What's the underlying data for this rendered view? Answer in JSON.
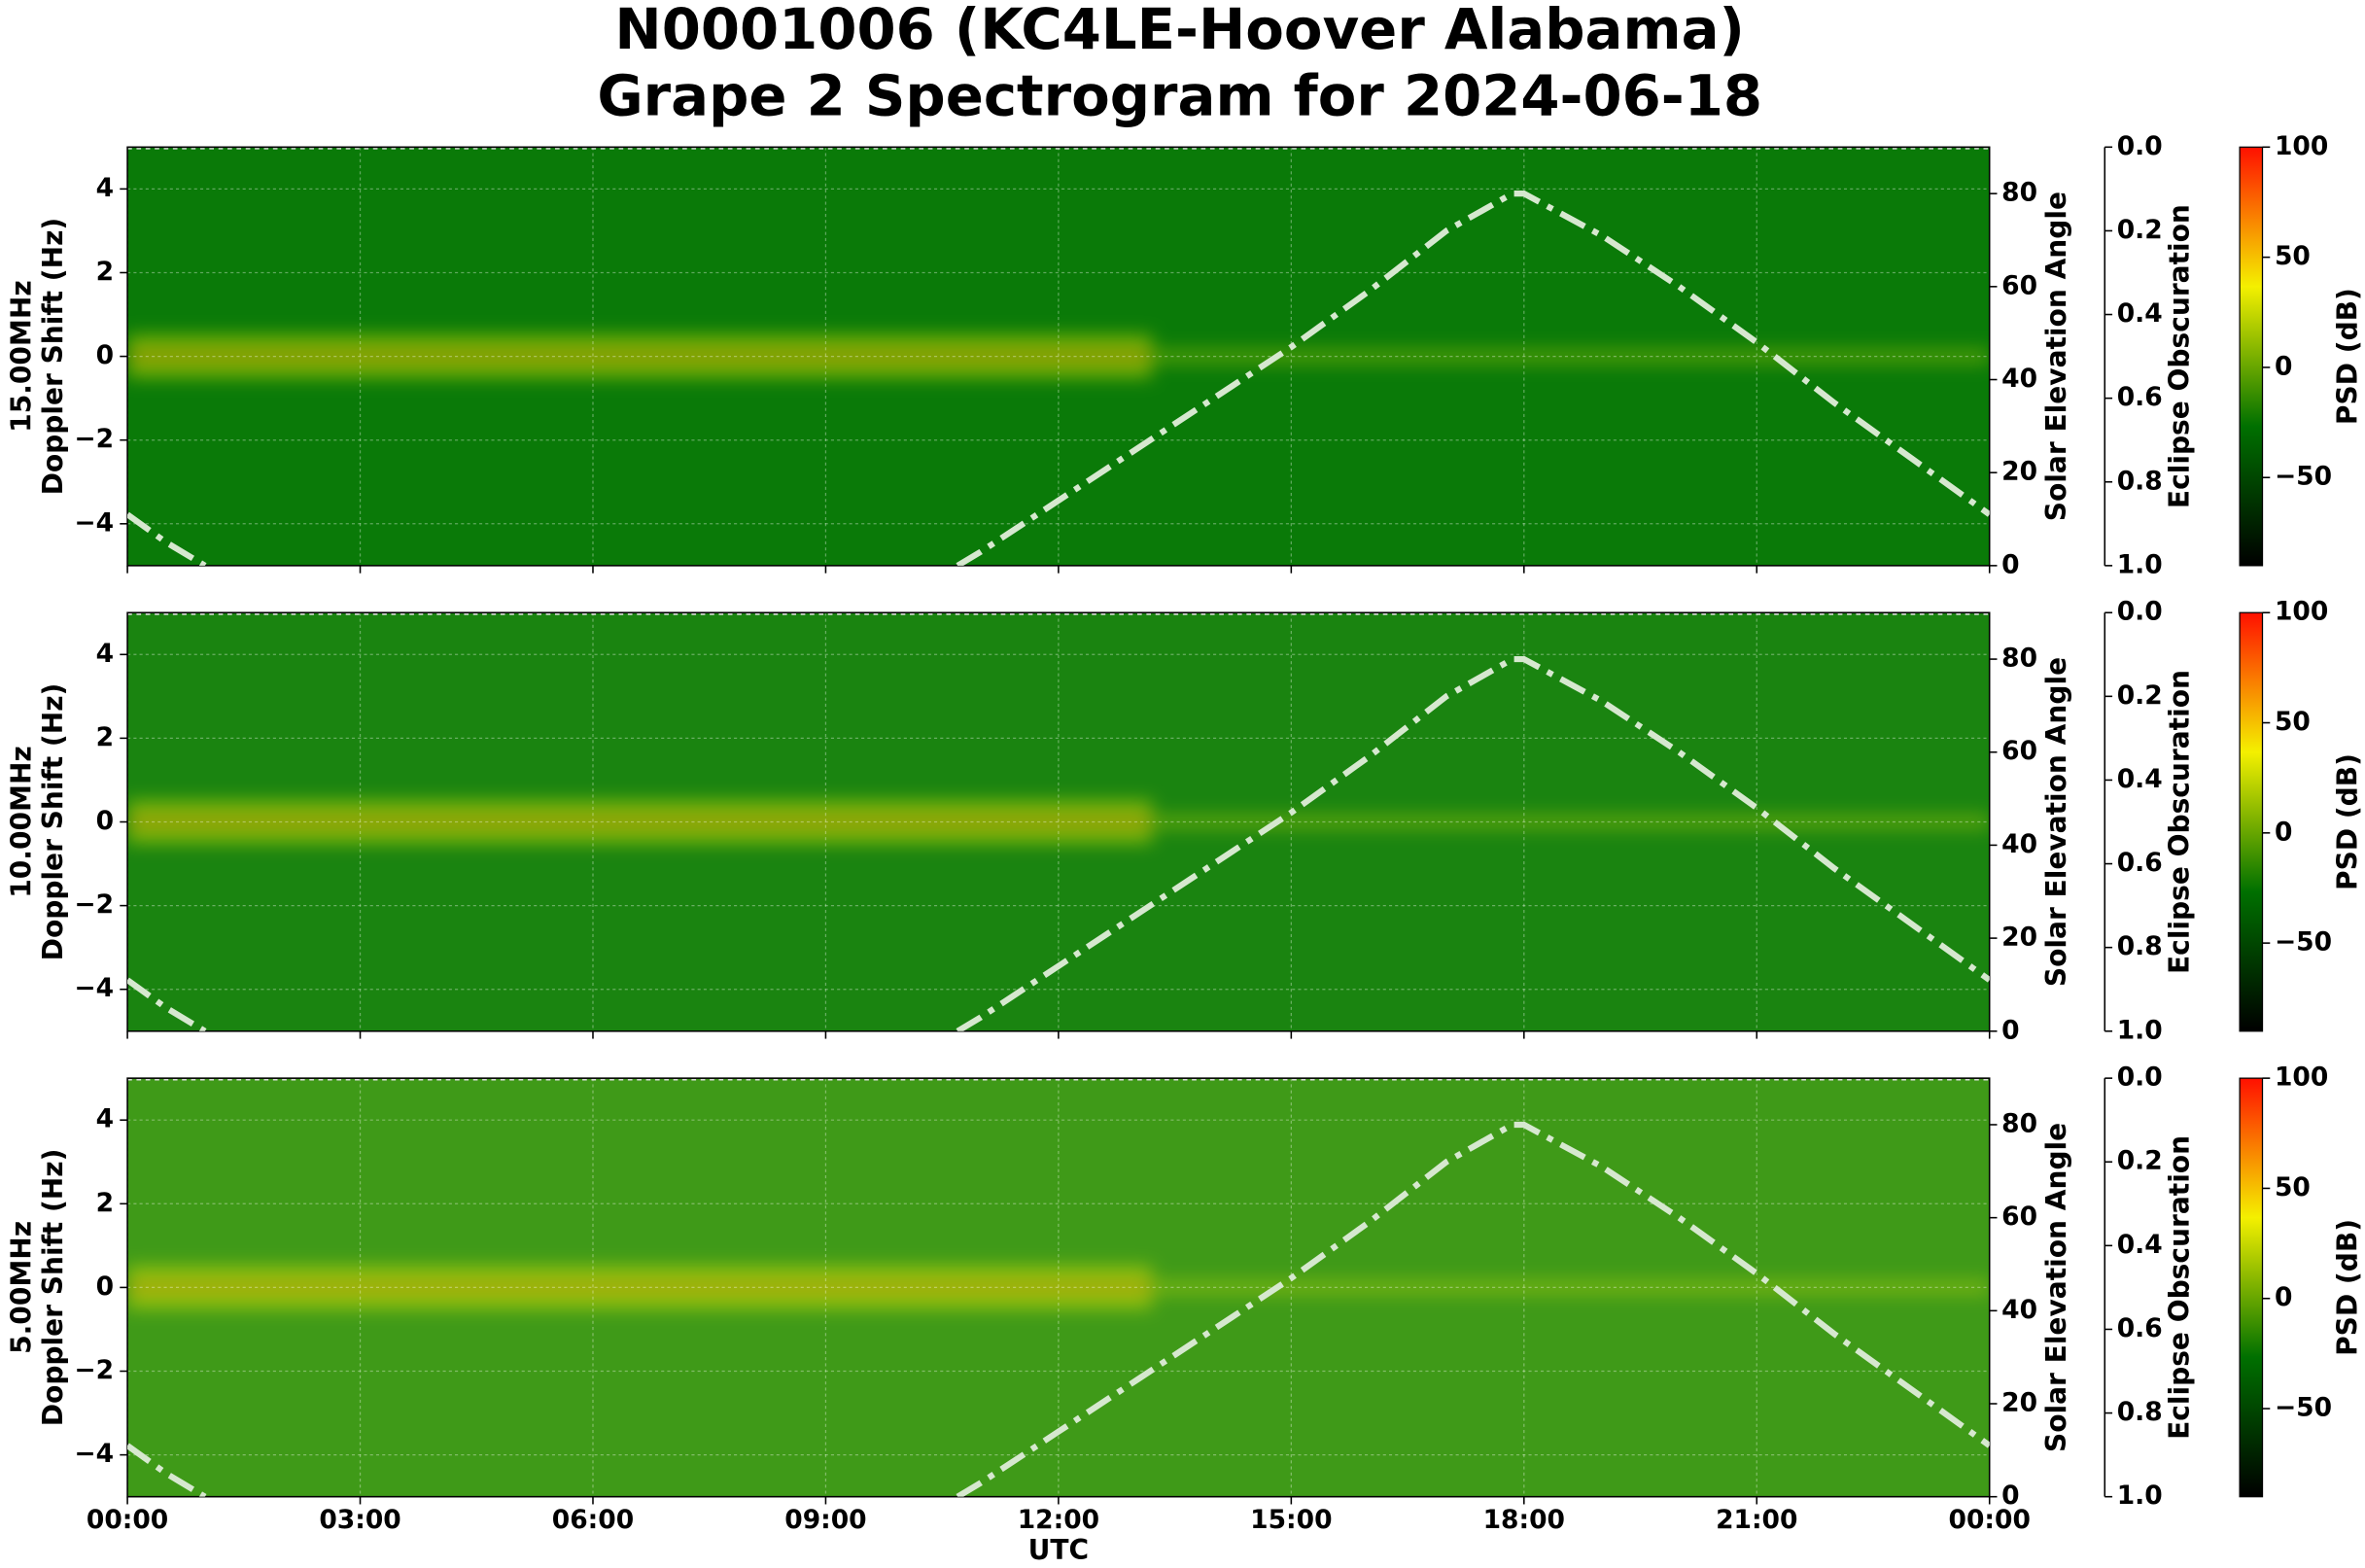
{
  "title": [
    "N0001006 (KC4LE-Hoover Alabama)",
    "Grape 2 Spectrogram for 2024-06-18"
  ],
  "chart_data": [
    {
      "type": "spectrogram",
      "ylabel": [
        "15.00MHz",
        "Doppler Shift (Hz)"
      ],
      "ylim": [
        -5,
        5
      ],
      "yticks": [
        {
          "value": -4,
          "label": "−4"
        },
        {
          "value": -2,
          "label": "−2"
        },
        0,
        2,
        4
      ],
      "xlim": [
        0,
        24
      ],
      "xticks": [
        0,
        3,
        6,
        9,
        12,
        15,
        18,
        21,
        24
      ],
      "grid": true,
      "image_color": "#0a7a08",
      "colormap": [
        "#000000",
        "#007000",
        "#f4f000",
        "#ff1000"
      ],
      "y2label": "Solar Elevation Angle",
      "y2lim": [
        0,
        90
      ],
      "y2ticks": [
        0,
        20,
        40,
        60,
        80
      ],
      "y3label": "Eclipse Obscuration",
      "y3lim": [
        1,
        0
      ],
      "y3ticks": [
        {
          "value": 0,
          "label": "0.0"
        },
        0.2,
        0.4,
        0.6,
        0.8,
        {
          "value": 1,
          "label": "1.0"
        }
      ],
      "colorbar": {
        "label": "PSD (dB)",
        "lim": [
          -90,
          100
        ],
        "ticks": [
          {
            "value": -50,
            "label": "−50"
          },
          0,
          50,
          100
        ]
      },
      "x": [
        0,
        0.5,
        1,
        1.5,
        10.7,
        11,
        12,
        13,
        14,
        15,
        16,
        17,
        17.85,
        18,
        19,
        20,
        21,
        22,
        23,
        24
      ],
      "series": [
        {
          "axis": "y2",
          "color": "#d6e8cf",
          "values": [
            11,
            5,
            0,
            null,
            0,
            3,
            14,
            25,
            36,
            47,
            59,
            72,
            80,
            80,
            71,
            60,
            48,
            35,
            23,
            11
          ]
        }
      ]
    },
    {
      "type": "spectrogram",
      "ylabel": [
        "10.00MHz",
        "Doppler Shift (Hz)"
      ],
      "ylim": [
        -5,
        5
      ],
      "yticks": [
        {
          "value": -4,
          "label": "−4"
        },
        {
          "value": -2,
          "label": "−2"
        },
        0,
        2,
        4
      ],
      "xlim": [
        0,
        24
      ],
      "xticks": [
        0,
        3,
        6,
        9,
        12,
        15,
        18,
        21,
        24
      ],
      "grid": true,
      "image_color": "#1a8410",
      "colormap": [
        "#000000",
        "#007000",
        "#f4f000",
        "#ff1000"
      ],
      "y2label": "Solar Elevation Angle",
      "y2lim": [
        0,
        90
      ],
      "y2ticks": [
        0,
        20,
        40,
        60,
        80
      ],
      "y3label": "Eclipse Obscuration",
      "y3lim": [
        1,
        0
      ],
      "y3ticks": [
        {
          "value": 0,
          "label": "0.0"
        },
        0.2,
        0.4,
        0.6,
        0.8,
        {
          "value": 1,
          "label": "1.0"
        }
      ],
      "colorbar": {
        "label": "PSD (dB)",
        "lim": [
          -90,
          100
        ],
        "ticks": [
          {
            "value": -50,
            "label": "−50"
          },
          0,
          50,
          100
        ]
      },
      "x": [
        0,
        0.5,
        1,
        1.5,
        10.7,
        11,
        12,
        13,
        14,
        15,
        16,
        17,
        17.85,
        18,
        19,
        20,
        21,
        22,
        23,
        24
      ],
      "series": [
        {
          "axis": "y2",
          "color": "#d6e8cf",
          "values": [
            11,
            5,
            0,
            null,
            0,
            3,
            14,
            25,
            36,
            47,
            59,
            72,
            80,
            80,
            71,
            60,
            48,
            35,
            23,
            11
          ]
        }
      ]
    },
    {
      "type": "spectrogram",
      "ylabel": [
        "5.00MHz",
        "Doppler Shift (Hz)"
      ],
      "ylim": [
        -5,
        5
      ],
      "yticks": [
        {
          "value": -4,
          "label": "−4"
        },
        {
          "value": -2,
          "label": "−2"
        },
        0,
        2,
        4
      ],
      "xlim": [
        0,
        24
      ],
      "xticks": [
        {
          "value": 0,
          "label": "00:00"
        },
        {
          "value": 3,
          "label": "03:00"
        },
        {
          "value": 6,
          "label": "06:00"
        },
        {
          "value": 9,
          "label": "09:00"
        },
        {
          "value": 12,
          "label": "12:00"
        },
        {
          "value": 15,
          "label": "15:00"
        },
        {
          "value": 18,
          "label": "18:00"
        },
        {
          "value": 21,
          "label": "21:00"
        },
        {
          "value": 24,
          "label": "00:00"
        }
      ],
      "xlabel": "UTC",
      "grid": true,
      "image_color": "#3f9a18",
      "colormap": [
        "#000000",
        "#007000",
        "#f4f000",
        "#ff1000"
      ],
      "y2label": "Solar Elevation Angle",
      "y2lim": [
        0,
        90
      ],
      "y2ticks": [
        0,
        20,
        40,
        60,
        80
      ],
      "y3label": "Eclipse Obscuration",
      "y3lim": [
        1,
        0
      ],
      "y3ticks": [
        {
          "value": 0,
          "label": "0.0"
        },
        0.2,
        0.4,
        0.6,
        0.8,
        {
          "value": 1,
          "label": "1.0"
        }
      ],
      "colorbar": {
        "label": "PSD (dB)",
        "lim": [
          -90,
          100
        ],
        "ticks": [
          {
            "value": -50,
            "label": "−50"
          },
          0,
          50,
          100
        ]
      },
      "x": [
        0,
        0.5,
        1,
        1.5,
        10.7,
        11,
        12,
        13,
        14,
        15,
        16,
        17,
        17.85,
        18,
        19,
        20,
        21,
        22,
        23,
        24
      ],
      "series": [
        {
          "axis": "y2",
          "color": "#d6e8cf",
          "values": [
            11,
            5,
            0,
            null,
            0,
            3,
            14,
            25,
            36,
            47,
            59,
            72,
            80,
            80,
            71,
            60,
            48,
            35,
            23,
            11
          ]
        }
      ]
    }
  ]
}
